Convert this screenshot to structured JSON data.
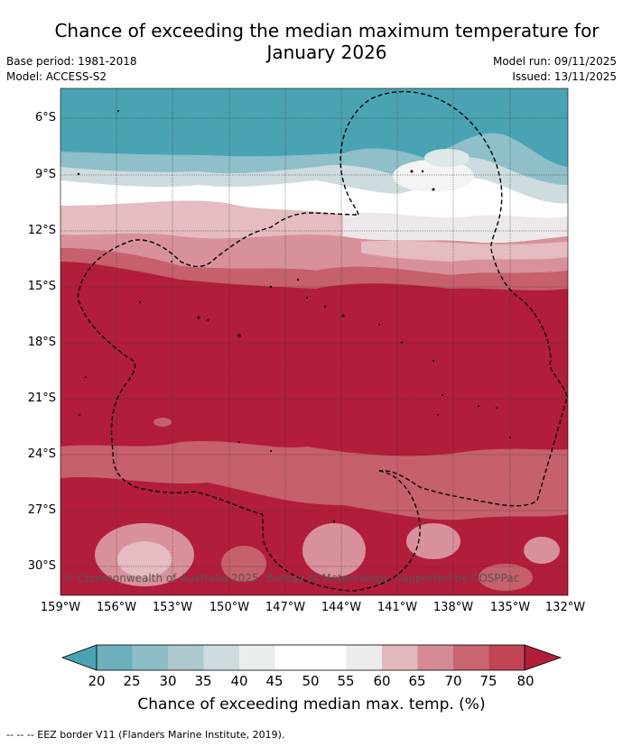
{
  "title_line1": "Chance of exceeding the median maximum temperature for",
  "title_line2": "January 2026",
  "meta": {
    "base_period": "Base period: 1981-2018",
    "model": "Model: ACCESS-S2",
    "model_run": "Model run: 09/11/2025",
    "issued": "Issued: 13/11/2025"
  },
  "map": {
    "lat_labels": [
      "6°S",
      "9°S",
      "12°S",
      "15°S",
      "18°S",
      "21°S",
      "24°S",
      "27°S",
      "30°S"
    ],
    "lon_labels": [
      "159°W",
      "156°W",
      "153°W",
      "150°W",
      "147°W",
      "144°W",
      "141°W",
      "138°W",
      "135°W",
      "132°W"
    ],
    "copyright": "© Commonwealth of Australia 2025, Bureau of Meteorology, supported by COSPPac"
  },
  "colorbar": {
    "ticks": [
      "20",
      "25",
      "30",
      "35",
      "40",
      "45",
      "50",
      "55",
      "60",
      "65",
      "70",
      "75",
      "80"
    ],
    "colors": [
      "#4aa3b3",
      "#6cb0bd",
      "#8dbec8",
      "#adc9ce",
      "#cfdbdf",
      "#e8eef0",
      "#ffffff",
      "#ffffff",
      "#eeebeb",
      "#e1b8bd",
      "#d48b93",
      "#c96570",
      "#c14555",
      "#b11d3a"
    ],
    "title": "Chance of exceeding median max. temp. (%)"
  },
  "footnote": "--  --  -- EEZ border V11 (Flanders Marine Institute, 2019)."
}
